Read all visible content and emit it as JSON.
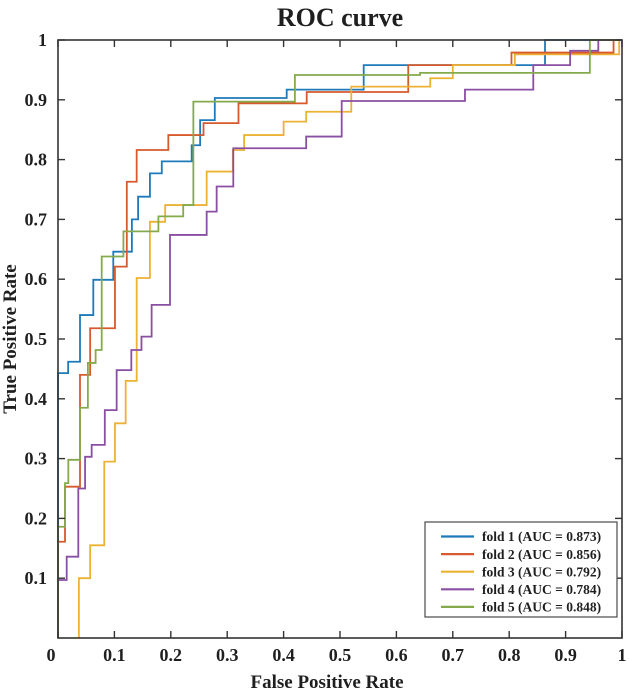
{
  "title": "ROC curve",
  "xlabel": "False Positive Rate",
  "ylabel": "True Positive Rate",
  "colors": {
    "axis": "#333333",
    "text": "#1f1f1f",
    "legend_border": "#4a4a4a",
    "background": "#ffffff"
  },
  "chart_data": {
    "type": "line",
    "subtype": "roc-step",
    "title": "ROC curve",
    "xlabel": "False Positive Rate",
    "ylabel": "True Positive Rate",
    "xlim": [
      0,
      1
    ],
    "ylim": [
      0,
      1
    ],
    "grid": false,
    "legend_position": "lower right",
    "x_ticks": {
      "values": [
        0,
        0.1,
        0.2,
        0.3,
        0.4,
        0.5,
        0.6,
        0.7,
        0.8,
        0.9,
        1
      ],
      "labels": [
        "0",
        "0.1",
        "0.2",
        "0.3",
        "0.4",
        "0.5",
        "0.6",
        "0.7",
        "0.8",
        "0.9",
        "1"
      ]
    },
    "y_ticks": {
      "values": [
        0.1,
        0.2,
        0.3,
        0.4,
        0.5,
        0.6,
        0.7,
        0.8,
        0.9,
        1
      ],
      "labels": [
        "0.1",
        "0.2",
        "0.3",
        "0.4",
        "0.5",
        "0.6",
        "0.7",
        "0.8",
        "0.9",
        "1"
      ]
    },
    "series": [
      {
        "name": "fold 1 (AUC = 0.873)",
        "auc": 0.873,
        "color": "#1f7ab9",
        "points": [
          [
            0,
            0
          ],
          [
            0,
            0.443
          ],
          [
            0.018,
            0.443
          ],
          [
            0.018,
            0.462
          ],
          [
            0.039,
            0.462
          ],
          [
            0.039,
            0.54
          ],
          [
            0.0626,
            0.54
          ],
          [
            0.0626,
            0.599
          ],
          [
            0.098,
            0.599
          ],
          [
            0.098,
            0.646
          ],
          [
            0.131,
            0.646
          ],
          [
            0.131,
            0.7
          ],
          [
            0.142,
            0.7
          ],
          [
            0.142,
            0.738
          ],
          [
            0.163,
            0.738
          ],
          [
            0.163,
            0.777
          ],
          [
            0.184,
            0.777
          ],
          [
            0.184,
            0.797
          ],
          [
            0.237,
            0.797
          ],
          [
            0.237,
            0.824
          ],
          [
            0.252,
            0.824
          ],
          [
            0.252,
            0.866
          ],
          [
            0.278,
            0.866
          ],
          [
            0.278,
            0.903
          ],
          [
            0.4055,
            0.903
          ],
          [
            0.4055,
            0.917
          ],
          [
            0.542,
            0.917
          ],
          [
            0.542,
            0.958
          ],
          [
            0.8635,
            0.958
          ],
          [
            0.8635,
            1
          ],
          [
            1,
            1
          ]
        ]
      },
      {
        "name": "fold 2 (AUC = 0.856)",
        "auc": 0.856,
        "color": "#d65a2d",
        "points": [
          [
            0,
            0
          ],
          [
            0,
            0.161
          ],
          [
            0.0124,
            0.161
          ],
          [
            0.0124,
            0.253
          ],
          [
            0.039,
            0.253
          ],
          [
            0.039,
            0.44
          ],
          [
            0.057,
            0.44
          ],
          [
            0.057,
            0.518
          ],
          [
            0.101,
            0.518
          ],
          [
            0.101,
            0.621
          ],
          [
            0.122,
            0.621
          ],
          [
            0.122,
            0.763
          ],
          [
            0.1395,
            0.763
          ],
          [
            0.1395,
            0.816
          ],
          [
            0.1956,
            0.816
          ],
          [
            0.1956,
            0.841
          ],
          [
            0.258,
            0.841
          ],
          [
            0.258,
            0.861
          ],
          [
            0.32,
            0.861
          ],
          [
            0.32,
            0.894
          ],
          [
            0.441,
            0.894
          ],
          [
            0.441,
            0.913
          ],
          [
            0.621,
            0.913
          ],
          [
            0.621,
            0.958
          ],
          [
            0.804,
            0.958
          ],
          [
            0.804,
            0.979
          ],
          [
            0.985,
            0.979
          ],
          [
            0.985,
            1
          ],
          [
            1,
            1
          ]
        ]
      },
      {
        "name": "fold 3 (AUC = 0.792)",
        "auc": 0.792,
        "color": "#ebb233",
        "points": [
          [
            0.037,
            0
          ],
          [
            0.037,
            0.1
          ],
          [
            0.057,
            0.1
          ],
          [
            0.057,
            0.155
          ],
          [
            0.082,
            0.155
          ],
          [
            0.082,
            0.295
          ],
          [
            0.101,
            0.295
          ],
          [
            0.101,
            0.359
          ],
          [
            0.12,
            0.359
          ],
          [
            0.12,
            0.43
          ],
          [
            0.1395,
            0.43
          ],
          [
            0.1395,
            0.602
          ],
          [
            0.163,
            0.602
          ],
          [
            0.163,
            0.696
          ],
          [
            0.19,
            0.696
          ],
          [
            0.19,
            0.724
          ],
          [
            0.2636,
            0.724
          ],
          [
            0.2636,
            0.78
          ],
          [
            0.31,
            0.78
          ],
          [
            0.31,
            0.816
          ],
          [
            0.33,
            0.816
          ],
          [
            0.33,
            0.841
          ],
          [
            0.4,
            0.841
          ],
          [
            0.4,
            0.8635
          ],
          [
            0.44,
            0.8635
          ],
          [
            0.44,
            0.88
          ],
          [
            0.52,
            0.88
          ],
          [
            0.52,
            0.922
          ],
          [
            0.66,
            0.922
          ],
          [
            0.66,
            0.936
          ],
          [
            0.7,
            0.936
          ],
          [
            0.7,
            0.958
          ],
          [
            0.81,
            0.958
          ],
          [
            0.81,
            0.976
          ],
          [
            0.995,
            0.976
          ],
          [
            0.995,
            1
          ],
          [
            1,
            1
          ]
        ]
      },
      {
        "name": "fold 4 (AUC = 0.784)",
        "auc": 0.784,
        "color": "#8a4fa3",
        "points": [
          [
            0,
            0
          ],
          [
            0,
            0.097
          ],
          [
            0.0154,
            0.097
          ],
          [
            0.0154,
            0.136
          ],
          [
            0.036,
            0.136
          ],
          [
            0.036,
            0.25
          ],
          [
            0.048,
            0.25
          ],
          [
            0.048,
            0.303
          ],
          [
            0.0597,
            0.303
          ],
          [
            0.0597,
            0.323
          ],
          [
            0.083,
            0.323
          ],
          [
            0.083,
            0.381
          ],
          [
            0.104,
            0.381
          ],
          [
            0.104,
            0.448
          ],
          [
            0.13,
            0.448
          ],
          [
            0.13,
            0.4816
          ],
          [
            0.148,
            0.4816
          ],
          [
            0.148,
            0.504
          ],
          [
            0.166,
            0.504
          ],
          [
            0.166,
            0.557
          ],
          [
            0.1986,
            0.557
          ],
          [
            0.1986,
            0.674
          ],
          [
            0.2636,
            0.674
          ],
          [
            0.2636,
            0.713
          ],
          [
            0.2813,
            0.713
          ],
          [
            0.2813,
            0.755
          ],
          [
            0.3108,
            0.755
          ],
          [
            0.3108,
            0.819
          ],
          [
            0.44,
            0.819
          ],
          [
            0.44,
            0.8385
          ],
          [
            0.503,
            0.8385
          ],
          [
            0.503,
            0.898
          ],
          [
            0.7216,
            0.898
          ],
          [
            0.7216,
            0.917
          ],
          [
            0.8427,
            0.917
          ],
          [
            0.8427,
            0.958
          ],
          [
            0.908,
            0.958
          ],
          [
            0.908,
            0.982
          ],
          [
            0.958,
            0.982
          ],
          [
            0.958,
            1
          ],
          [
            1,
            1
          ]
        ]
      },
      {
        "name": "fold 5 (AUC = 0.848)",
        "auc": 0.848,
        "color": "#84aa4c",
        "points": [
          [
            0,
            0
          ],
          [
            0,
            0.186
          ],
          [
            0.0124,
            0.186
          ],
          [
            0.0124,
            0.259
          ],
          [
            0.0183,
            0.259
          ],
          [
            0.0183,
            0.298
          ],
          [
            0.039,
            0.298
          ],
          [
            0.039,
            0.385
          ],
          [
            0.053,
            0.385
          ],
          [
            0.053,
            0.46
          ],
          [
            0.0667,
            0.46
          ],
          [
            0.0667,
            0.4816
          ],
          [
            0.0775,
            0.4816
          ],
          [
            0.0775,
            0.638
          ],
          [
            0.116,
            0.638
          ],
          [
            0.116,
            0.68
          ],
          [
            0.178,
            0.68
          ],
          [
            0.178,
            0.705
          ],
          [
            0.222,
            0.705
          ],
          [
            0.222,
            0.724
          ],
          [
            0.24,
            0.724
          ],
          [
            0.24,
            0.897
          ],
          [
            0.42,
            0.897
          ],
          [
            0.42,
            0.9415
          ],
          [
            0.642,
            0.9415
          ],
          [
            0.642,
            0.945
          ],
          [
            0.943,
            0.945
          ],
          [
            0.943,
            1
          ],
          [
            1,
            1
          ]
        ]
      }
    ],
    "legend": [
      {
        "label": "fold 1 (AUC = 0.873)",
        "color": "#1f7ab9"
      },
      {
        "label": "fold 2 (AUC = 0.856)",
        "color": "#d65a2d"
      },
      {
        "label": "fold 3 (AUC = 0.792)",
        "color": "#ebb233"
      },
      {
        "label": "fold 4 (AUC = 0.784)",
        "color": "#8a4fa3"
      },
      {
        "label": "fold 5 (AUC = 0.848)",
        "color": "#84aa4c"
      }
    ]
  }
}
